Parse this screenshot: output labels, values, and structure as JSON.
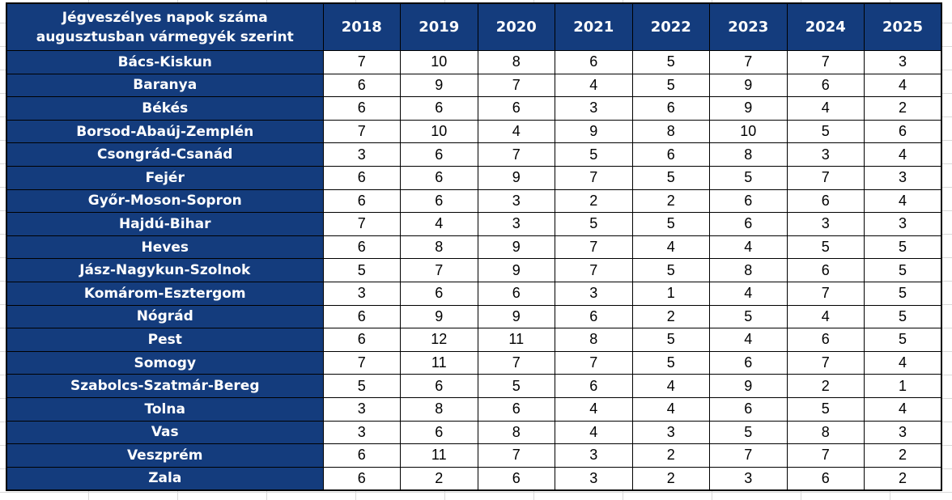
{
  "colors": {
    "header_bg": "#143c7d",
    "header_text": "#ffffff",
    "cell_bg": "#ffffff",
    "cell_text": "#000000",
    "border": "#000000",
    "margin_gridline": "#d9d9d9"
  },
  "chart_data": {
    "type": "table",
    "title": "Jégveszélyes napok száma augusztusban vármegyék szerint",
    "title_lines": [
      "Jégveszélyes napok száma",
      "augusztusban vármegyék szerint"
    ],
    "columns": [
      "2018",
      "2019",
      "2020",
      "2021",
      "2022",
      "2023",
      "2024",
      "2025"
    ],
    "rows": [
      {
        "county": "Bács-Kiskun",
        "values": [
          7,
          10,
          8,
          6,
          5,
          7,
          7,
          3
        ]
      },
      {
        "county": "Baranya",
        "values": [
          6,
          9,
          7,
          4,
          5,
          9,
          6,
          4
        ]
      },
      {
        "county": "Békés",
        "values": [
          6,
          6,
          6,
          3,
          6,
          9,
          4,
          2
        ]
      },
      {
        "county": "Borsod-Abaúj-Zemplén",
        "values": [
          7,
          10,
          4,
          9,
          8,
          10,
          5,
          6
        ]
      },
      {
        "county": "Csongrád-Csanád",
        "values": [
          3,
          6,
          7,
          5,
          6,
          8,
          3,
          4
        ]
      },
      {
        "county": "Fejér",
        "values": [
          6,
          6,
          9,
          7,
          5,
          5,
          7,
          3
        ]
      },
      {
        "county": "Győr-Moson-Sopron",
        "values": [
          6,
          6,
          3,
          2,
          2,
          6,
          6,
          4
        ]
      },
      {
        "county": "Hajdú-Bihar",
        "values": [
          7,
          4,
          3,
          5,
          5,
          6,
          3,
          3
        ]
      },
      {
        "county": "Heves",
        "values": [
          6,
          8,
          9,
          7,
          4,
          4,
          5,
          5
        ]
      },
      {
        "county": "Jász-Nagykun-Szolnok",
        "values": [
          5,
          7,
          9,
          7,
          5,
          8,
          6,
          5
        ]
      },
      {
        "county": "Komárom-Esztergom",
        "values": [
          3,
          6,
          6,
          3,
          1,
          4,
          7,
          5
        ]
      },
      {
        "county": "Nógrád",
        "values": [
          6,
          9,
          9,
          6,
          2,
          5,
          4,
          5
        ]
      },
      {
        "county": "Pest",
        "values": [
          6,
          12,
          11,
          8,
          5,
          4,
          6,
          5
        ]
      },
      {
        "county": "Somogy",
        "values": [
          7,
          11,
          7,
          7,
          5,
          6,
          7,
          4
        ]
      },
      {
        "county": "Szabolcs-Szatmár-Bereg",
        "values": [
          5,
          6,
          5,
          6,
          4,
          9,
          2,
          1
        ]
      },
      {
        "county": "Tolna",
        "values": [
          3,
          8,
          6,
          4,
          4,
          6,
          5,
          4
        ]
      },
      {
        "county": "Vas",
        "values": [
          3,
          6,
          8,
          4,
          3,
          5,
          8,
          3
        ]
      },
      {
        "county": "Veszprém",
        "values": [
          6,
          11,
          7,
          3,
          2,
          7,
          7,
          2
        ]
      },
      {
        "county": "Zala",
        "values": [
          6,
          2,
          6,
          3,
          2,
          3,
          6,
          2
        ]
      }
    ]
  }
}
